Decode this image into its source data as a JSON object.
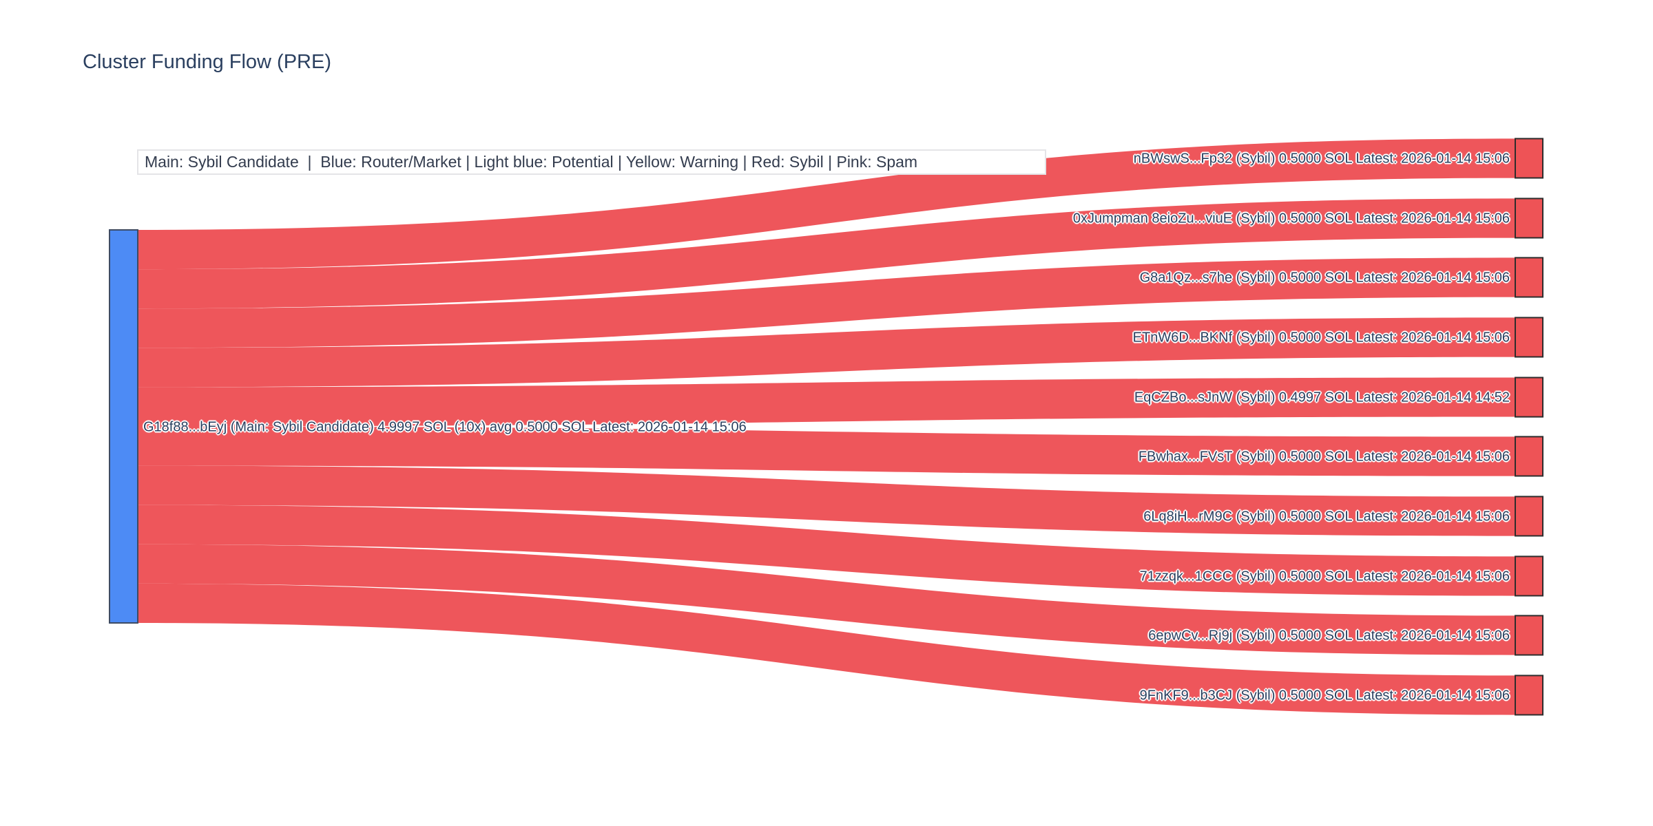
{
  "header": {
    "title": "Cluster Funding Flow (PRE)"
  },
  "legend": {
    "text": "Main: Sybil Candidate  |  Blue: Router/Market | Light blue: Potential | Yellow: Warning | Red: Sybil | Pink: Spam"
  },
  "chart_data": {
    "type": "sankey",
    "title": "Cluster Funding Flow (PRE)",
    "legend_text": "Main: Sybil Candidate  |  Blue: Router/Market | Light blue: Potential | Yellow: Warning | Red: Sybil | Pink: Spam",
    "source": {
      "label": "G18f88...bEyj (Main: Sybil Candidate) 4.9997 SOL (10x) avg 0.5000 SOL Latest: 2026-01-14 15:06",
      "address_short": "G18f88...bEyj",
      "category": "Main: Sybil Candidate",
      "total_sol": 4.9997,
      "tx_count": "10x",
      "avg_sol": "0.5000 SOL",
      "latest": "2026-01-14 15:06",
      "color": "#4d8bf5",
      "border_color": "#3e4b63"
    },
    "links": [
      {
        "target_label": "nBWswS...Fp32 (Sybil) 0.5000 SOL Latest: 2026-01-14 15:06",
        "address_short": "nBWswS...Fp32",
        "category": "Sybil",
        "value": 0.5,
        "latest": "2026-01-14 15:06"
      },
      {
        "target_label": "0xJumpman 8eioZu...viuE (Sybil) 0.5000 SOL Latest: 2026-01-14 15:06",
        "address_short": "0xJumpman 8eioZu...viuE",
        "category": "Sybil",
        "value": 0.5,
        "latest": "2026-01-14 15:06"
      },
      {
        "target_label": "G8a1Qz...s7he (Sybil) 0.5000 SOL Latest: 2026-01-14 15:06",
        "address_short": "G8a1Qz...s7he",
        "category": "Sybil",
        "value": 0.5,
        "latest": "2026-01-14 15:06"
      },
      {
        "target_label": "ETnW6D...BKNf (Sybil) 0.5000 SOL Latest: 2026-01-14 15:06",
        "address_short": "ETnW6D...BKNf",
        "category": "Sybil",
        "value": 0.5,
        "latest": "2026-01-14 15:06"
      },
      {
        "target_label": "EqCZBo...sJnW (Sybil) 0.4997 SOL Latest: 2026-01-14 14:52",
        "address_short": "EqCZBo...sJnW",
        "category": "Sybil",
        "value": 0.4997,
        "latest": "2026-01-14 14:52"
      },
      {
        "target_label": "FBwhax...FVsT (Sybil) 0.5000 SOL Latest: 2026-01-14 15:06",
        "address_short": "FBwhax...FVsT",
        "category": "Sybil",
        "value": 0.5,
        "latest": "2026-01-14 15:06"
      },
      {
        "target_label": "6Lq8iH...rM9C (Sybil) 0.5000 SOL Latest: 2026-01-14 15:06",
        "address_short": "6Lq8iH...rM9C",
        "category": "Sybil",
        "value": 0.5,
        "latest": "2026-01-14 15:06"
      },
      {
        "target_label": "71zzqk...1CCC (Sybil) 0.5000 SOL Latest: 2026-01-14 15:06",
        "address_short": "71zzqk...1CCC",
        "category": "Sybil",
        "value": 0.5,
        "latest": "2026-01-14 15:06"
      },
      {
        "target_label": "6epwCv...Rj9j (Sybil) 0.5000 SOL Latest: 2026-01-14 15:06",
        "address_short": "6epwCv...Rj9j",
        "category": "Sybil",
        "value": 0.5,
        "latest": "2026-01-14 15:06"
      },
      {
        "target_label": "9FnKF9...b3CJ (Sybil) 0.5000 SOL Latest: 2026-01-14 15:06",
        "address_short": "9FnKF9...b3CJ",
        "category": "Sybil",
        "value": 0.5,
        "latest": "2026-01-14 15:06"
      }
    ],
    "colors": {
      "link": "#ee565b",
      "target_node": "#ee5356",
      "target_node_border": "#2d2d2d",
      "label_text": "#2a3f5f",
      "title_text": "#2a3f5f"
    },
    "layout_hints": {
      "orientation": "horizontal",
      "source_side": "left",
      "targets_side": "right",
      "legend_position": "top-left-inside"
    }
  }
}
